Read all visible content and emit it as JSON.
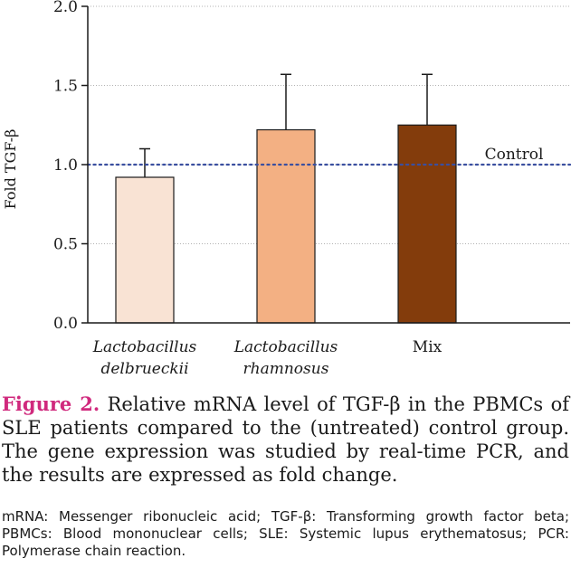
{
  "chart_data": {
    "type": "bar",
    "title": "",
    "xlabel": "",
    "ylabel": "Fold TGF-β",
    "ylim": [
      0,
      2.0
    ],
    "yticks": [
      "0.0",
      "0.5",
      "1.0",
      "1.5",
      "2.0"
    ],
    "grid": true,
    "categories": [
      [
        "Lactobacillus",
        "delbrueckii"
      ],
      [
        "Lactobacillus",
        "rhamnosus"
      ],
      [
        "Mix"
      ]
    ],
    "values": [
      0.92,
      1.22,
      1.25
    ],
    "errors": [
      0.18,
      0.35,
      0.32
    ],
    "colors": [
      "#f9e3d4",
      "#f3b083",
      "#833c0c"
    ],
    "reference_line": {
      "value": 1.0,
      "label": "Control",
      "color": "#3a4fa0"
    }
  },
  "caption": {
    "label": "Figure 2.",
    "text": " Relative mRNA level of TGF-β in the PBMCs of SLE patients compared to the (untreated) control group. The gene expression was studied by real-time PCR, and the results are expressed as fold change."
  },
  "footnote": "mRNA: Messenger ribonucleic acid; TGF-β: Transforming growth factor beta; PBMCs: Blood mononuclear cells; SLE: Systemic lupus erythematosus; PCR: Polymerase chain reaction.",
  "colors": {
    "figure_label": "#d0297d",
    "axis": "#1a1a1a",
    "grid": "#9a9a9a"
  }
}
